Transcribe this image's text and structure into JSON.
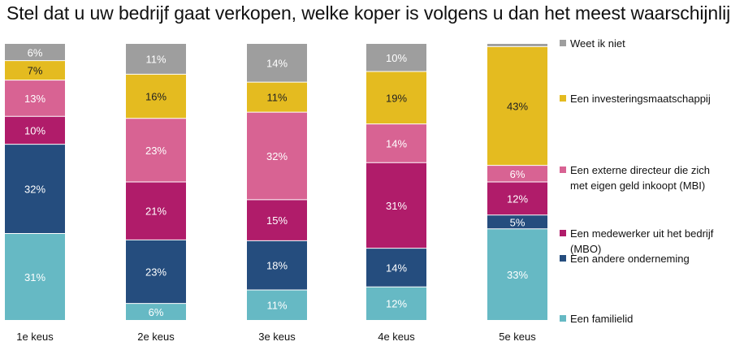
{
  "chart_data": {
    "type": "bar",
    "stacked": true,
    "normalized": true,
    "title": "Stel dat u uw bedrijf gaat verkopen, welke koper is volgens u dan het meest waarschijnlijk?",
    "xlabel": "",
    "ylabel": "",
    "ylim": [
      0,
      100
    ],
    "grid": false,
    "legend_position": "right",
    "categories": [
      "1e keus",
      "2e keus",
      "3e keus",
      "4e keus",
      "5e keus"
    ],
    "series": [
      {
        "name": "Een familielid",
        "color": "#66B9C4",
        "text_color": "#ffffff",
        "values": [
          31,
          6,
          11,
          12,
          33
        ],
        "labels": [
          "31%",
          "6%",
          "11%",
          "12%",
          "33%"
        ]
      },
      {
        "name": "Een andere onderneming",
        "color": "#254D7E",
        "text_color": "#ffffff",
        "values": [
          32,
          23,
          18,
          14,
          5
        ],
        "labels": [
          "32%",
          "23%",
          "18%",
          "14%",
          "5%"
        ]
      },
      {
        "name": "Een medewerker uit het bedrijf (MBO)",
        "legend_lines": [
          "Een medewerker uit het bedrijf",
          "(MBO)"
        ],
        "color": "#B01C6A",
        "text_color": "#ffffff",
        "values": [
          10,
          21,
          15,
          31,
          12
        ],
        "labels": [
          "10%",
          "21%",
          "15%",
          "31%",
          "12%"
        ]
      },
      {
        "name": "Een externe directeur die zich met eigen geld inkoopt (MBI)",
        "legend_lines": [
          "Een externe directeur die zich",
          "met eigen geld inkoopt (MBI)"
        ],
        "color": "#D86393",
        "text_color": "#ffffff",
        "values": [
          13,
          23,
          32,
          14,
          6
        ],
        "labels": [
          "13%",
          "23%",
          "32%",
          "14%",
          "6%"
        ]
      },
      {
        "name": "Een investeringsmaatschappij",
        "color": "#E4BB20",
        "text_color": "#222222",
        "values": [
          7,
          16,
          11,
          19,
          43
        ],
        "labels": [
          "7%",
          "16%",
          "11%",
          "19%",
          "43%"
        ]
      },
      {
        "name": "Weet ik niet",
        "color": "#9E9E9E",
        "text_color": "#ffffff",
        "values": [
          6,
          11,
          14,
          10,
          1
        ],
        "labels": [
          "6%",
          "11%",
          "14%",
          "10%",
          ""
        ]
      }
    ]
  }
}
